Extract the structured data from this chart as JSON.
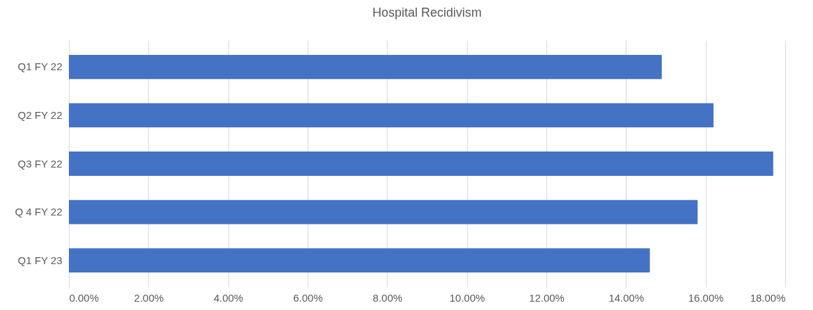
{
  "chart_data": {
    "type": "bar",
    "orientation": "horizontal",
    "title": "Hospital Recidivism",
    "categories": [
      "Q1 FY 22",
      "Q2 FY 22",
      "Q3 FY 22",
      "Q 4 FY 22",
      "Q1 FY 23"
    ],
    "values": [
      0.149,
      0.162,
      0.177,
      0.158,
      0.146
    ],
    "color": "#4472c4",
    "xlim": [
      0,
      0.18
    ],
    "xticks": [
      {
        "value": 0,
        "label": "0.00%"
      },
      {
        "value": 0.02,
        "label": "2.00%"
      },
      {
        "value": 0.04,
        "label": "4.00%"
      },
      {
        "value": 0.06,
        "label": "6.00%"
      },
      {
        "value": 0.08,
        "label": "8.00%"
      },
      {
        "value": 0.1,
        "label": "10.00%"
      },
      {
        "value": 0.12,
        "label": "12.00%"
      },
      {
        "value": 0.14,
        "label": "14.00%"
      },
      {
        "value": 0.16,
        "label": "16.00%"
      },
      {
        "value": 0.18,
        "label": "18.00%"
      }
    ],
    "grid": "x"
  }
}
